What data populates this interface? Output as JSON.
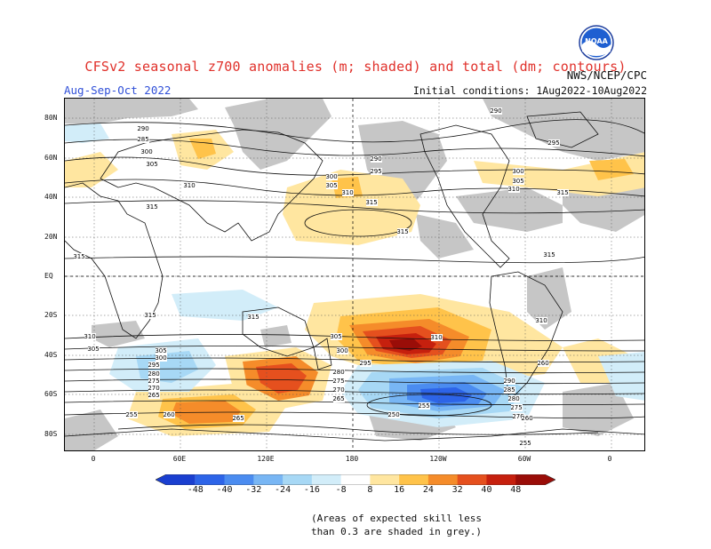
{
  "header": {
    "title": "CFSv2 seasonal z700 anomalies (m; shaded) and total (dm; contours)",
    "period": "Aug-Sep-Oct 2022",
    "agency": "NWS/NCEP/CPC",
    "initial_conditions": "Initial conditions: 1Aug2022-10Aug2022",
    "logo_text": "NOAA"
  },
  "axes": {
    "lat_labels": [
      "80N",
      "60N",
      "40N",
      "20N",
      "EQ",
      "20S",
      "40S",
      "60S",
      "80S"
    ],
    "lon_labels": [
      "0",
      "60E",
      "120E",
      "180",
      "120W",
      "60W",
      "0"
    ]
  },
  "colorbar": {
    "labels": [
      "-48",
      "-40",
      "-32",
      "-24",
      "-16",
      "-8",
      "8",
      "16",
      "24",
      "32",
      "40",
      "48"
    ],
    "colors": [
      "#1a3fd0",
      "#2d64e8",
      "#4b8cf0",
      "#78b6f4",
      "#a7d8f5",
      "#d2edf9",
      "#ffffff",
      "#ffe6a0",
      "#ffc34a",
      "#f58c2a",
      "#e5501e",
      "#c6200e",
      "#9a0d08"
    ]
  },
  "contours": {
    "labels": [
      "290",
      "285",
      "300",
      "305",
      "310",
      "315",
      "300",
      "305",
      "310",
      "315",
      "290",
      "295",
      "315",
      "290",
      "295",
      "300",
      "305",
      "310",
      "315",
      "315",
      "315",
      "315",
      "310",
      "315",
      "310",
      "305",
      "300",
      "310",
      "295",
      "305",
      "300",
      "295",
      "280",
      "275",
      "270",
      "265",
      "280",
      "275",
      "270",
      "265",
      "255",
      "260",
      "265",
      "250",
      "255",
      "290",
      "285",
      "280",
      "275",
      "270",
      "260",
      "255",
      "260",
      "305"
    ]
  },
  "footnote": {
    "line1": "(Areas of expected skill less",
    "line2": "than 0.3 are shaded in grey.)"
  }
}
